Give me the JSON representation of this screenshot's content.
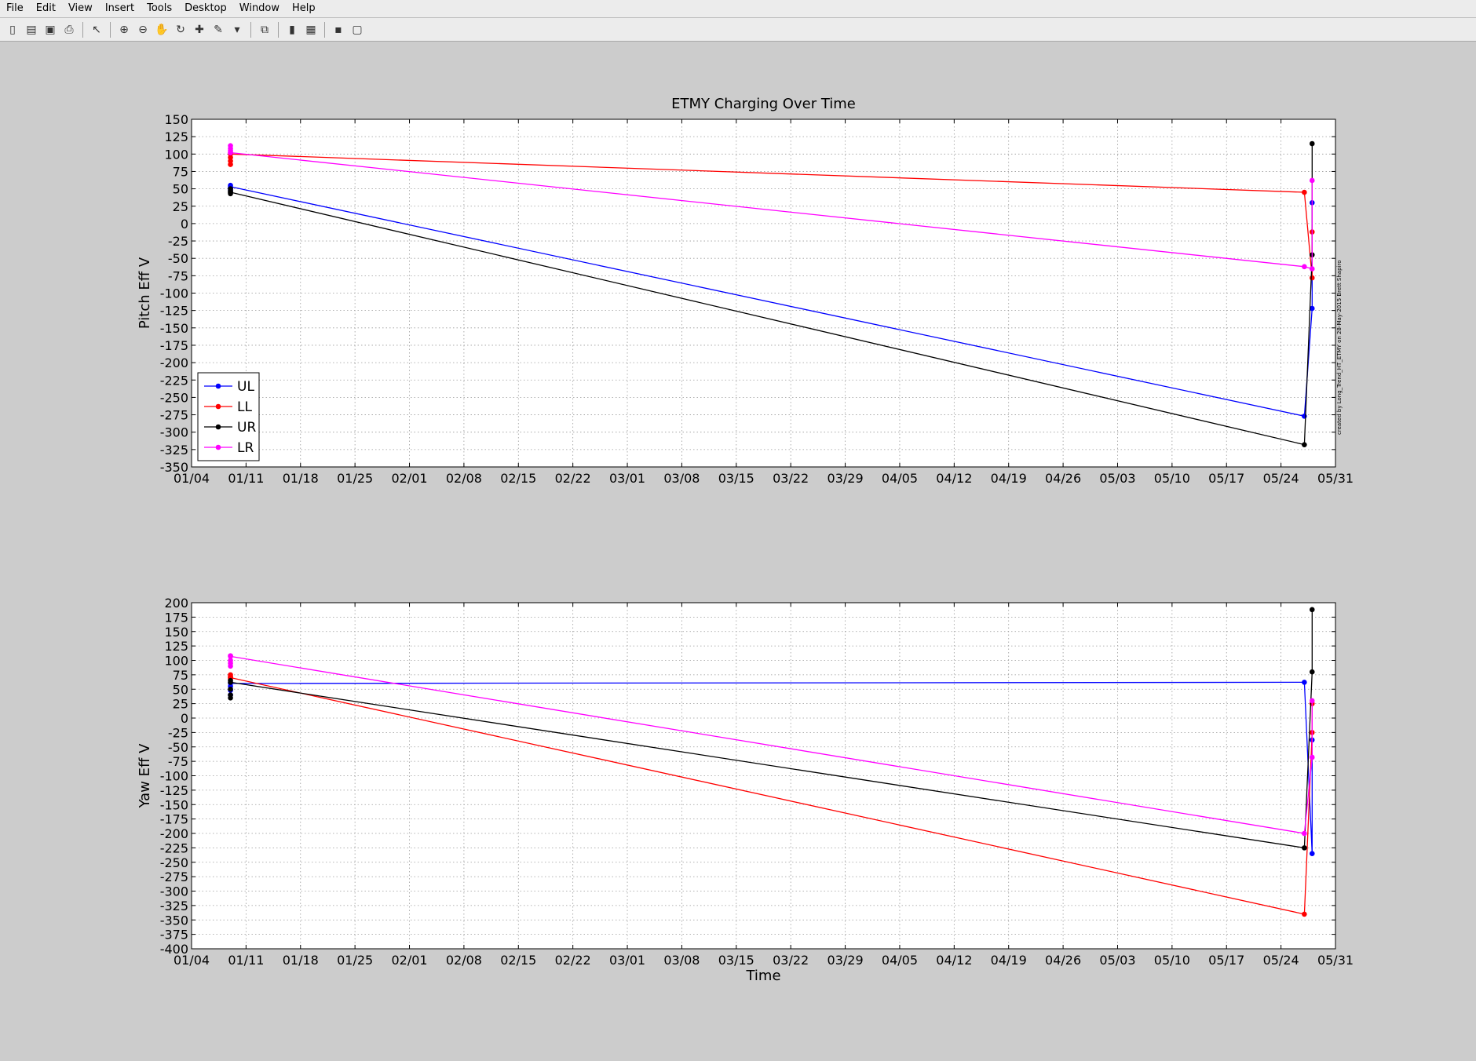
{
  "menu": [
    "File",
    "Edit",
    "View",
    "Insert",
    "Tools",
    "Desktop",
    "Window",
    "Help"
  ],
  "toolbar": {
    "icons": [
      "new-figure-icon",
      "open-file-icon",
      "save-icon",
      "print-icon",
      "|",
      "select-arrow-icon",
      "|",
      "zoom-in-icon",
      "zoom-out-icon",
      "pan-hand-icon",
      "rotate-3d-icon",
      "data-cursor-icon",
      "brush-icon",
      "dropdown-arrow-icon",
      "|",
      "link-plot-icon",
      "|",
      "colorbar-icon",
      "legend-icon",
      "|",
      "hide-plot-tools-icon",
      "show-plot-tools-icon"
    ]
  },
  "colors": {
    "UL": "#0000ff",
    "LL": "#ff0000",
    "UR": "#000000",
    "LR": "#ff00ff"
  },
  "watermark": "created by Long_Trend_HT_ETMY on 28-May-2015 Brett Shapiro",
  "chart_data": [
    {
      "type": "line",
      "title": "ETMY Charging Over Time",
      "xlabel": "",
      "ylabel": "Pitch Eff V",
      "xlim": [
        "01/04",
        "05/31"
      ],
      "ylim": [
        -350,
        150
      ],
      "yticks": [
        150,
        125,
        100,
        75,
        50,
        25,
        0,
        -25,
        -50,
        -75,
        -100,
        -125,
        -150,
        -175,
        -200,
        -225,
        -250,
        -275,
        -300,
        -325,
        -350
      ],
      "xticks": [
        "01/04",
        "01/11",
        "01/18",
        "01/25",
        "02/01",
        "02/08",
        "02/15",
        "02/22",
        "03/01",
        "03/08",
        "03/15",
        "03/22",
        "03/29",
        "04/05",
        "04/12",
        "04/19",
        "04/26",
        "05/03",
        "05/10",
        "05/17",
        "05/24",
        "05/31"
      ],
      "grid": true,
      "legend": "bottom-left",
      "series": [
        {
          "name": "UL",
          "cluster_x": "01/09",
          "cluster_values": [
            55,
            52,
            50,
            48
          ],
          "line": [
            [
              "01/09",
              53
            ],
            [
              "05/27",
              -277
            ],
            [
              "05/28",
              -122
            ],
            [
              "05/28",
              30
            ]
          ]
        },
        {
          "name": "LL",
          "cluster_x": "01/09",
          "cluster_values": [
            100,
            95,
            90,
            85
          ],
          "line": [
            [
              "01/09",
              100
            ],
            [
              "05/27",
              45
            ],
            [
              "05/28",
              -78
            ],
            [
              "05/28",
              -12
            ]
          ]
        },
        {
          "name": "UR",
          "cluster_x": "01/09",
          "cluster_values": [
            50,
            47,
            45,
            43
          ],
          "line": [
            [
              "01/09",
              45
            ],
            [
              "05/27",
              -318
            ],
            [
              "05/28",
              -45
            ],
            [
              "05/28",
              115
            ]
          ]
        },
        {
          "name": "LR",
          "cluster_x": "01/09",
          "cluster_values": [
            112,
            108,
            105,
            102
          ],
          "line": [
            [
              "01/09",
              102
            ],
            [
              "05/27",
              -62
            ],
            [
              "05/28",
              -65
            ],
            [
              "05/28",
              62
            ]
          ]
        }
      ]
    },
    {
      "type": "line",
      "title": "",
      "xlabel": "Time",
      "ylabel": "Yaw Eff V",
      "xlim": [
        "01/04",
        "05/31"
      ],
      "ylim": [
        -400,
        200
      ],
      "yticks": [
        200,
        175,
        150,
        125,
        100,
        75,
        50,
        25,
        0,
        -25,
        -50,
        -75,
        -100,
        -125,
        -150,
        -175,
        -200,
        -225,
        -250,
        -275,
        -300,
        -325,
        -350,
        -375,
        -400
      ],
      "xticks": [
        "01/04",
        "01/11",
        "01/18",
        "01/25",
        "02/01",
        "02/08",
        "02/15",
        "02/22",
        "03/01",
        "03/08",
        "03/15",
        "03/22",
        "03/29",
        "04/05",
        "04/12",
        "04/19",
        "04/26",
        "05/03",
        "05/10",
        "05/17",
        "05/24",
        "05/31"
      ],
      "grid": true,
      "series": [
        {
          "name": "UL",
          "cluster_x": "01/09",
          "cluster_values": [
            62,
            55,
            48,
            40
          ],
          "line": [
            [
              "01/09",
              60
            ],
            [
              "05/27",
              62
            ],
            [
              "05/28",
              -235
            ],
            [
              "05/28",
              -38
            ]
          ]
        },
        {
          "name": "LL",
          "cluster_x": "01/09",
          "cluster_values": [
            75,
            72,
            70,
            68
          ],
          "line": [
            [
              "01/09",
              70
            ],
            [
              "05/27",
              -340
            ],
            [
              "05/28",
              -25
            ],
            [
              "05/28",
              25
            ]
          ]
        },
        {
          "name": "UR",
          "cluster_x": "01/09",
          "cluster_values": [
            65,
            50,
            40,
            35
          ],
          "line": [
            [
              "01/09",
              62
            ],
            [
              "05/27",
              -225
            ],
            [
              "05/28",
              80
            ],
            [
              "05/28",
              188
            ]
          ]
        },
        {
          "name": "LR",
          "cluster_x": "01/09",
          "cluster_values": [
            108,
            100,
            95,
            90
          ],
          "line": [
            [
              "01/09",
              107
            ],
            [
              "05/27",
              -200
            ],
            [
              "05/28",
              -68
            ],
            [
              "05/28",
              30
            ]
          ]
        }
      ]
    }
  ]
}
